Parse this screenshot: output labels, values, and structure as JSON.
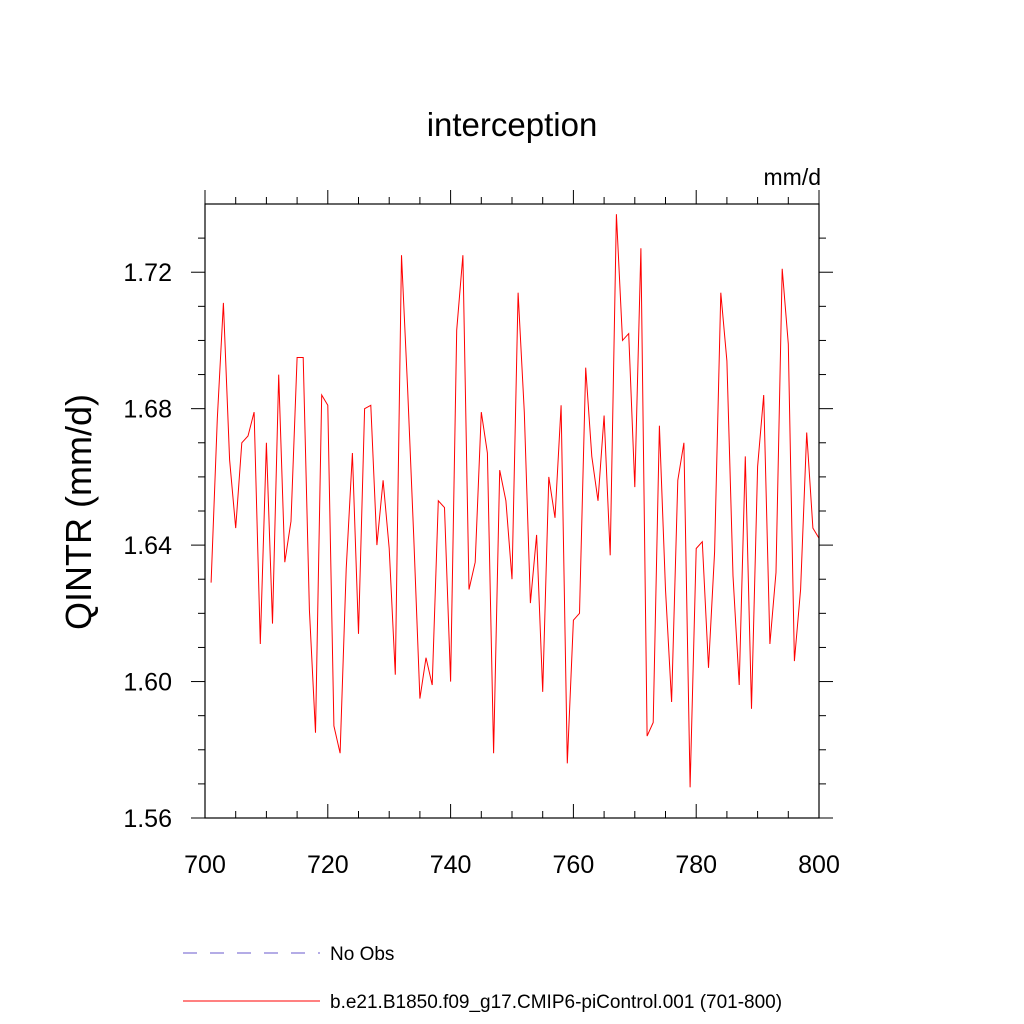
{
  "chart_data": {
    "type": "line",
    "title": "interception",
    "units": "mm/d",
    "xlabel": "",
    "ylabel": "QINTR  (mm/d)",
    "xlim": [
      700,
      800
    ],
    "ylim": [
      1.56,
      1.74
    ],
    "x_ticks": [
      700,
      720,
      740,
      760,
      780,
      800
    ],
    "x_tick_labels": [
      "700",
      "720",
      "740",
      "760",
      "780",
      "800"
    ],
    "y_ticks": [
      1.56,
      1.6,
      1.64,
      1.68,
      1.72
    ],
    "y_tick_labels": [
      "1.56",
      "1.60",
      "1.64",
      "1.68",
      "1.72"
    ],
    "grid": false,
    "legend": {
      "position": "bottom",
      "entries": [
        {
          "label": "No Obs",
          "color": "#6a5acd",
          "style": "dashed"
        },
        {
          "label": "b.e21.B1850.f09_g17.CMIP6-piControl.001 (701-800)",
          "color": "#ff0000",
          "style": "solid"
        }
      ]
    },
    "series": [
      {
        "name": "b.e21.B1850.f09_g17.CMIP6-piControl.001 (701-800)",
        "color": "#ff0000",
        "x": [
          701,
          702,
          703,
          704,
          705,
          706,
          707,
          708,
          709,
          710,
          711,
          712,
          713,
          714,
          715,
          716,
          717,
          718,
          719,
          720,
          721,
          722,
          723,
          724,
          725,
          726,
          727,
          728,
          729,
          730,
          731,
          732,
          733,
          734,
          735,
          736,
          737,
          738,
          739,
          740,
          741,
          742,
          743,
          744,
          745,
          746,
          747,
          748,
          749,
          750,
          751,
          752,
          753,
          754,
          755,
          756,
          757,
          758,
          759,
          760,
          761,
          762,
          763,
          764,
          765,
          766,
          767,
          768,
          769,
          770,
          771,
          772,
          773,
          774,
          775,
          776,
          777,
          778,
          779,
          780,
          781,
          782,
          783,
          784,
          785,
          786,
          787,
          788,
          789,
          790,
          791,
          792,
          793,
          794,
          795,
          796,
          797,
          798,
          799,
          800
        ],
        "values": [
          1.629,
          1.677,
          1.711,
          1.665,
          1.645,
          1.67,
          1.672,
          1.679,
          1.611,
          1.67,
          1.617,
          1.69,
          1.635,
          1.647,
          1.695,
          1.695,
          1.621,
          1.585,
          1.684,
          1.681,
          1.587,
          1.579,
          1.633,
          1.667,
          1.614,
          1.68,
          1.681,
          1.64,
          1.659,
          1.639,
          1.602,
          1.725,
          1.686,
          1.642,
          1.595,
          1.607,
          1.599,
          1.653,
          1.651,
          1.6,
          1.703,
          1.725,
          1.627,
          1.635,
          1.679,
          1.667,
          1.579,
          1.662,
          1.653,
          1.63,
          1.714,
          1.679,
          1.623,
          1.643,
          1.597,
          1.66,
          1.648,
          1.681,
          1.576,
          1.618,
          1.62,
          1.692,
          1.666,
          1.653,
          1.678,
          1.637,
          1.737,
          1.7,
          1.702,
          1.657,
          1.727,
          1.584,
          1.588,
          1.675,
          1.627,
          1.594,
          1.659,
          1.67,
          1.569,
          1.639,
          1.641,
          1.604,
          1.638,
          1.714,
          1.694,
          1.631,
          1.599,
          1.666,
          1.592,
          1.663,
          1.684,
          1.611,
          1.632,
          1.721,
          1.699,
          1.606,
          1.627,
          1.673,
          1.645,
          1.642
        ]
      }
    ]
  }
}
